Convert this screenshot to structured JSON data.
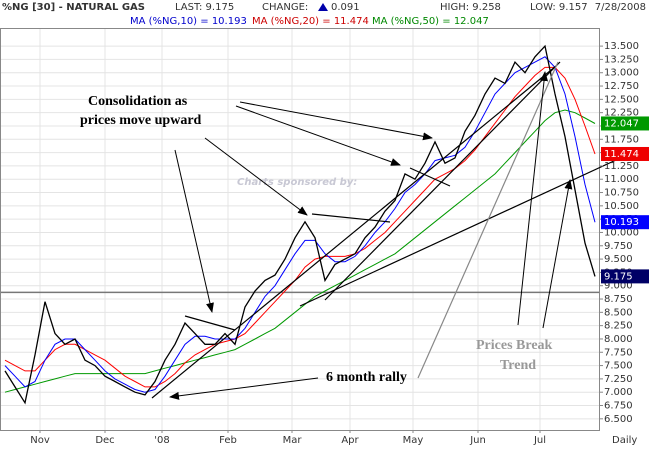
{
  "chart_data": {
    "type": "line",
    "title": "%NG [30] - NATURAL GAS",
    "last": "LAST: 9.175",
    "change_label": "CHANGE:",
    "change": "0.091",
    "high": "HIGH: 9.258",
    "low": "LOW: 9.157",
    "date": "7/28/2008",
    "ma_labels": [
      {
        "text": "MA (%NG,10) = 10.193",
        "color": "#0000cc"
      },
      {
        "text": "MA (%NG,20) = 11.474",
        "color": "#cc0000"
      },
      {
        "text": "MA (%NG,50) = 12.047",
        "color": "#008800"
      }
    ],
    "watermark": "Charts sponsored by:",
    "annotations": [
      "Consolidation as",
      "prices move upward",
      "6 month rally",
      "Prices Break",
      "Trend"
    ],
    "x_suffix_label": "Daily",
    "x": [
      0,
      1,
      2,
      3,
      4,
      5,
      6,
      7,
      8,
      9,
      10,
      11,
      12,
      13,
      14,
      15,
      16,
      17,
      18,
      19,
      20,
      21,
      22,
      23,
      24,
      25,
      26,
      27,
      28,
      29,
      30,
      31,
      32,
      33,
      34,
      35,
      36,
      37,
      38,
      39,
      40,
      41,
      42,
      43,
      44,
      45,
      46,
      47,
      48,
      49,
      50,
      51,
      52,
      53,
      54,
      55,
      56,
      57,
      58,
      59
    ],
    "series": [
      {
        "color": "#000000",
        "values": [
          7.4,
          7.1,
          6.8,
          7.7,
          8.7,
          8.1,
          7.9,
          8.0,
          7.6,
          7.5,
          7.3,
          7.2,
          7.1,
          7.0,
          6.95,
          7.2,
          7.6,
          7.9,
          8.3,
          8.1,
          7.9,
          7.9,
          8.1,
          7.9,
          8.6,
          8.9,
          9.1,
          9.2,
          9.5,
          9.9,
          10.2,
          9.9,
          9.1,
          9.4,
          9.5,
          9.6,
          9.9,
          10.1,
          10.4,
          10.6,
          11.1,
          11.0,
          11.3,
          11.7,
          11.3,
          11.4,
          11.9,
          12.2,
          12.6,
          12.9,
          12.8,
          13.2,
          13.0,
          13.3,
          13.5,
          12.6,
          11.8,
          10.8,
          9.8,
          9.175
        ],
        "box_color": "#000066"
      },
      {
        "color": "#0000ff",
        "values": [
          7.5,
          7.3,
          7.1,
          7.2,
          7.6,
          7.9,
          8.0,
          8.0,
          7.8,
          7.6,
          7.4,
          7.25,
          7.15,
          7.05,
          7.0,
          7.05,
          7.3,
          7.6,
          7.9,
          8.05,
          8.05,
          8.0,
          8.0,
          8.0,
          8.2,
          8.5,
          8.8,
          9.0,
          9.3,
          9.6,
          9.85,
          9.85,
          9.6,
          9.45,
          9.45,
          9.55,
          9.75,
          10.0,
          10.2,
          10.45,
          10.75,
          10.9,
          11.1,
          11.35,
          11.4,
          11.45,
          11.6,
          11.9,
          12.25,
          12.6,
          12.8,
          13.0,
          13.1,
          13.2,
          13.3,
          13.1,
          12.6,
          11.8,
          10.9,
          10.193
        ],
        "box_color": "#0000ff"
      },
      {
        "color": "#ff0000",
        "values": [
          7.6,
          7.5,
          7.4,
          7.4,
          7.6,
          7.8,
          7.9,
          7.9,
          7.8,
          7.7,
          7.6,
          7.45,
          7.3,
          7.2,
          7.1,
          7.1,
          7.2,
          7.35,
          7.55,
          7.7,
          7.8,
          7.9,
          7.95,
          8.0,
          8.1,
          8.3,
          8.5,
          8.7,
          8.9,
          9.1,
          9.35,
          9.5,
          9.55,
          9.55,
          9.55,
          9.6,
          9.7,
          9.85,
          10.0,
          10.2,
          10.4,
          10.6,
          10.8,
          11.0,
          11.1,
          11.2,
          11.35,
          11.55,
          11.8,
          12.05,
          12.3,
          12.55,
          12.75,
          12.95,
          13.1,
          13.1,
          12.9,
          12.5,
          12.0,
          11.474
        ],
        "box_color": "#ee0000"
      },
      {
        "color": "#009900",
        "values": [
          7.0,
          7.05,
          7.1,
          7.15,
          7.2,
          7.25,
          7.3,
          7.35,
          7.35,
          7.35,
          7.35,
          7.35,
          7.35,
          7.35,
          7.35,
          7.4,
          7.45,
          7.5,
          7.55,
          7.6,
          7.65,
          7.7,
          7.75,
          7.8,
          7.9,
          8.0,
          8.1,
          8.2,
          8.35,
          8.5,
          8.65,
          8.8,
          8.9,
          9.0,
          9.1,
          9.2,
          9.3,
          9.4,
          9.5,
          9.6,
          9.75,
          9.9,
          10.05,
          10.2,
          10.35,
          10.5,
          10.65,
          10.8,
          10.95,
          11.1,
          11.3,
          11.5,
          11.7,
          11.9,
          12.1,
          12.25,
          12.3,
          12.25,
          12.15,
          12.047
        ],
        "box_color": "#009900"
      }
    ],
    "xlim": [
      -0.5,
      59.5
    ],
    "xticks": [
      {
        "value": 3.5,
        "label": "Nov"
      },
      {
        "value": 10,
        "label": "Dec"
      },
      {
        "value": 15.7,
        "label": "'08"
      },
      {
        "value": 22.3,
        "label": "Feb"
      },
      {
        "value": 28.7,
        "label": "Mar"
      },
      {
        "value": 34.5,
        "label": "Apr"
      },
      {
        "value": 40.8,
        "label": "May"
      },
      {
        "value": 47.3,
        "label": "Jun"
      },
      {
        "value": 53.5,
        "label": "Jul"
      }
    ],
    "ylim": [
      6.29,
      13.84
    ],
    "yticks": [
      {
        "value": 6.5,
        "label": "6.500"
      },
      {
        "value": 6.75,
        "label": "6.750"
      },
      {
        "value": 7,
        "label": "7.000"
      },
      {
        "value": 7.25,
        "label": "7.250"
      },
      {
        "value": 7.5,
        "label": "7.500"
      },
      {
        "value": 7.75,
        "label": "7.750"
      },
      {
        "value": 8,
        "label": "8.000"
      },
      {
        "value": 8.25,
        "label": "8.250"
      },
      {
        "value": 8.5,
        "label": "8.500"
      },
      {
        "value": 8.75,
        "label": "8.750"
      },
      {
        "value": 9,
        "label": "9.000"
      },
      {
        "value": 9.25,
        "label": "9.250"
      },
      {
        "value": 9.5,
        "label": "9.500"
      },
      {
        "value": 9.75,
        "label": "9.750"
      },
      {
        "value": 10,
        "label": "10.000"
      },
      {
        "value": 10.25,
        "label": "10.250"
      },
      {
        "value": 10.5,
        "label": "10.500"
      },
      {
        "value": 10.75,
        "label": "10.750"
      },
      {
        "value": 11,
        "label": "11.000"
      },
      {
        "value": 11.25,
        "label": "11.250"
      },
      {
        "value": 11.5,
        "label": "11.500"
      },
      {
        "value": 11.75,
        "label": "11.750"
      },
      {
        "value": 12,
        "label": "12.000"
      },
      {
        "value": 12.25,
        "label": "12.250"
      },
      {
        "value": 12.5,
        "label": "12.500"
      },
      {
        "value": 12.75,
        "label": "12.750"
      },
      {
        "value": 13,
        "label": "13.000"
      },
      {
        "value": 13.25,
        "label": "13.250"
      },
      {
        "value": 13.5,
        "label": "13.500"
      }
    ],
    "support_line": 8.875,
    "grid": true
  }
}
